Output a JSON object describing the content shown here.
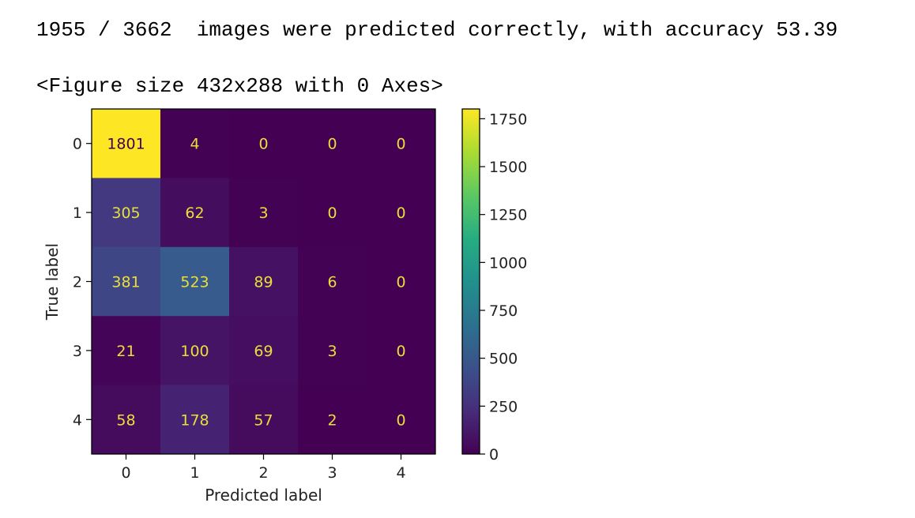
{
  "output": {
    "line1": "1955 / 3662  images were predicted correctly, with accuracy 53.39",
    "line2": "<Figure size 432x288 with 0 Axes>"
  },
  "chart_data": {
    "type": "heatmap",
    "xlabel": "Predicted label",
    "ylabel": "True label",
    "x_categories": [
      "0",
      "1",
      "2",
      "3",
      "4"
    ],
    "y_categories": [
      "0",
      "1",
      "2",
      "3",
      "4"
    ],
    "matrix": [
      [
        1801,
        4,
        0,
        0,
        0
      ],
      [
        305,
        62,
        3,
        0,
        0
      ],
      [
        381,
        523,
        89,
        6,
        0
      ],
      [
        21,
        100,
        69,
        3,
        0
      ],
      [
        58,
        178,
        57,
        2,
        0
      ]
    ],
    "colormap": "viridis",
    "colorbar": {
      "vmin": 0,
      "vmax": 1801,
      "ticks": [
        0,
        250,
        500,
        750,
        1000,
        1250,
        1500,
        1750
      ]
    },
    "text_color_light": "#e8df3a",
    "text_color_dark": "#440154"
  }
}
